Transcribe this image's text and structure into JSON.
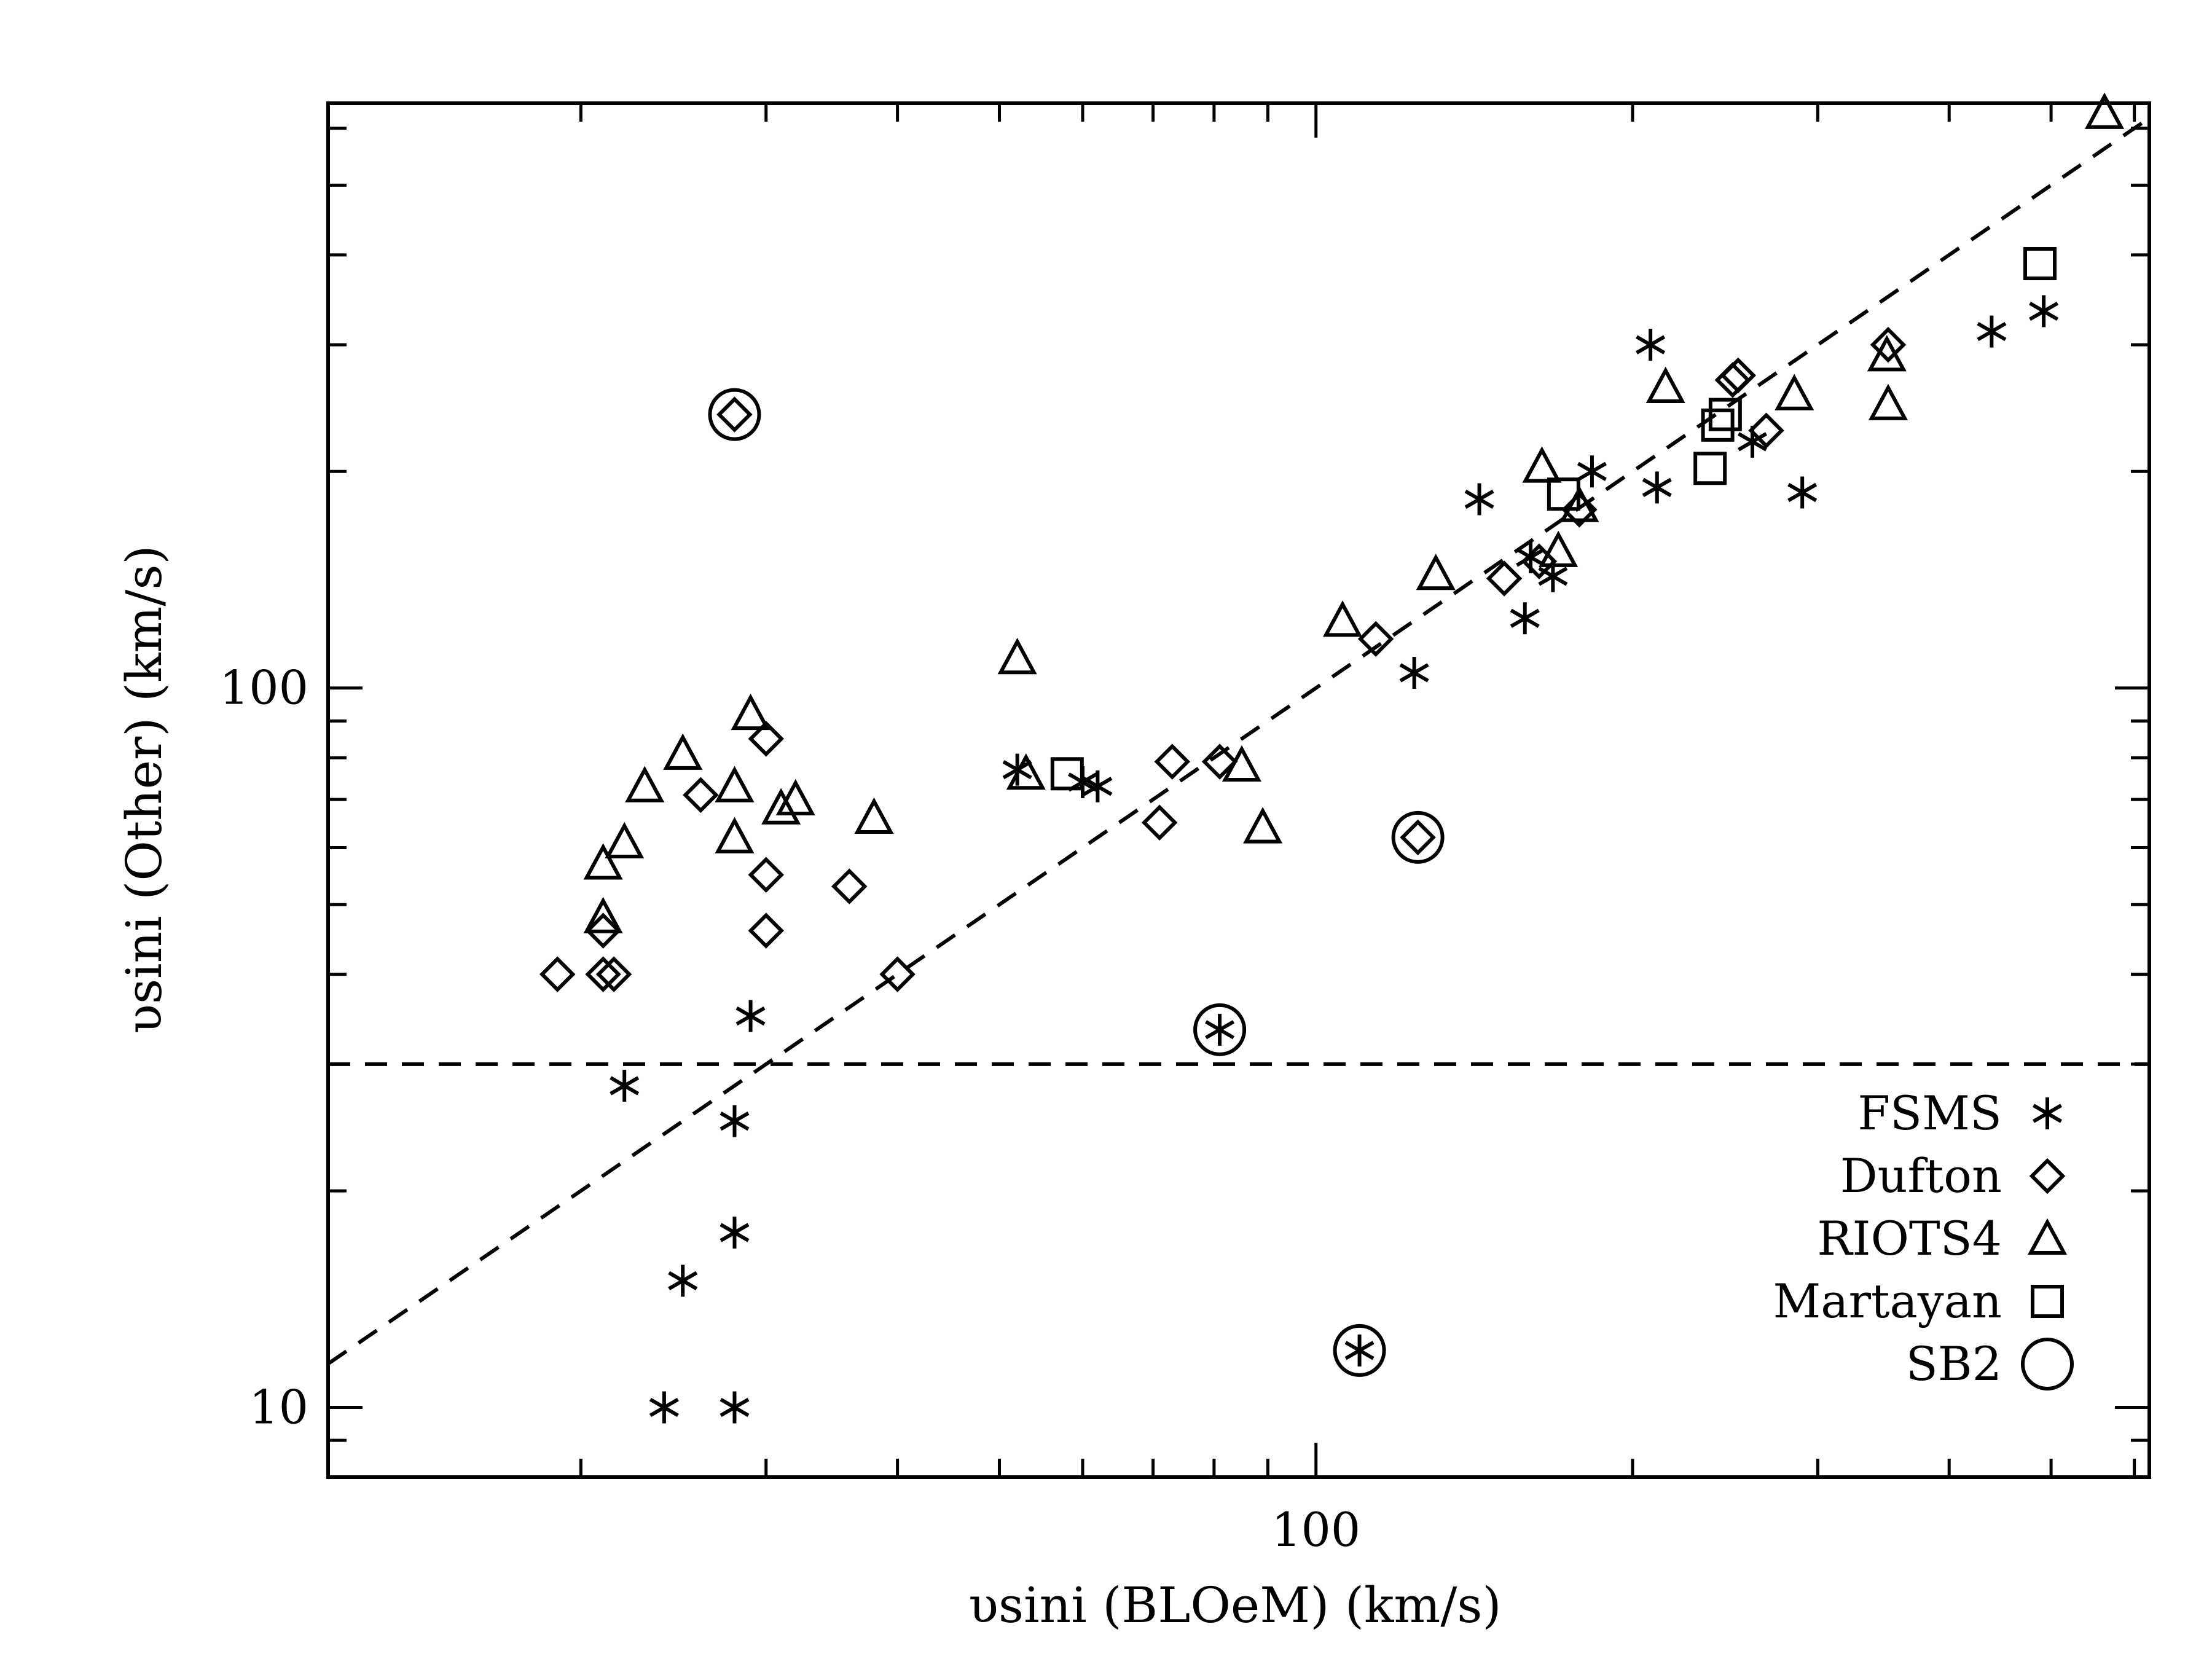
{
  "chart_data": {
    "type": "scatter",
    "xscale": "log",
    "yscale": "log",
    "xlim": [
      11.5,
      620
    ],
    "ylim": [
      8.0,
      650
    ],
    "xlabel": "υsini (BLOeM) (km/s)",
    "ylabel": "υsini (Other) (km/s)",
    "x_tick_labels": [
      {
        "value": 100,
        "label": "100"
      }
    ],
    "y_tick_labels": [
      {
        "value": 10,
        "label": "10"
      },
      {
        "value": 100,
        "label": "100"
      }
    ],
    "reference_lines": [
      {
        "kind": "one-to-one",
        "style": "dashed"
      },
      {
        "kind": "horizontal",
        "y": 30,
        "style": "dashed"
      }
    ],
    "legend": {
      "position": "bottom-right"
    },
    "series": [
      {
        "name": "FSMS",
        "marker": "asterisk",
        "points": [
          [
            52,
            77
          ],
          [
            60,
            74
          ],
          [
            62,
            73
          ],
          [
            124,
            105
          ],
          [
            158,
            125
          ],
          [
            143,
            183
          ],
          [
            160,
            152
          ],
          [
            168,
            143
          ],
          [
            183,
            200
          ],
          [
            211,
            190
          ],
          [
            208,
            300
          ],
          [
            260,
            220
          ],
          [
            290,
            187
          ],
          [
            439,
            313
          ],
          [
            492,
            334
          ],
          [
            22,
            28
          ],
          [
            24,
            10
          ],
          [
            25,
            15
          ],
          [
            28,
            10
          ],
          [
            28,
            17.5
          ],
          [
            28,
            25
          ],
          [
            29,
            35
          ]
        ]
      },
      {
        "name": "Dufton",
        "marker": "diamond",
        "points": [
          [
            19,
            40
          ],
          [
            21,
            40
          ],
          [
            21.5,
            40
          ],
          [
            21,
            46
          ],
          [
            26,
            71
          ],
          [
            30,
            85
          ],
          [
            30,
            55
          ],
          [
            30,
            46
          ],
          [
            36,
            53
          ],
          [
            40,
            40
          ],
          [
            71,
            65
          ],
          [
            73,
            79
          ],
          [
            81,
            79
          ],
          [
            114,
            117
          ],
          [
            151,
            142
          ],
          [
            163,
            150
          ],
          [
            178,
            177
          ],
          [
            249,
            268
          ],
          [
            252,
            272
          ],
          [
            268,
            228
          ],
          [
            350,
            300
          ]
        ]
      },
      {
        "name": "RIOTS4",
        "marker": "triangle",
        "points": [
          [
            21,
            57
          ],
          [
            21,
            48
          ],
          [
            22,
            61
          ],
          [
            23,
            73
          ],
          [
            25,
            81
          ],
          [
            28,
            73
          ],
          [
            28,
            62
          ],
          [
            29,
            92
          ],
          [
            31,
            68
          ],
          [
            32,
            70
          ],
          [
            38,
            66
          ],
          [
            52,
            110
          ],
          [
            53,
            76
          ],
          [
            85,
            78
          ],
          [
            89,
            64
          ],
          [
            106,
            124
          ],
          [
            130,
            144
          ],
          [
            164,
            203
          ],
          [
            170,
            155
          ],
          [
            178,
            179
          ],
          [
            215,
            262
          ],
          [
            285,
            256
          ],
          [
            349,
            290
          ],
          [
            350,
            248
          ],
          [
            562,
            630
          ]
        ]
      },
      {
        "name": "Martayan",
        "marker": "square",
        "points": [
          [
            58,
            76
          ],
          [
            172,
            186
          ],
          [
            237,
            202
          ],
          [
            241,
            232
          ],
          [
            245,
            240
          ],
          [
            488,
            389
          ]
        ]
      },
      {
        "name": "SB2",
        "marker": "circle",
        "points": [
          [
            28,
            240
          ],
          [
            125,
            62
          ],
          [
            81,
            33.5
          ],
          [
            110,
            12
          ]
        ]
      }
    ],
    "sb2_inner_markers": [
      "diamond",
      "diamond",
      "asterisk",
      "asterisk"
    ]
  }
}
